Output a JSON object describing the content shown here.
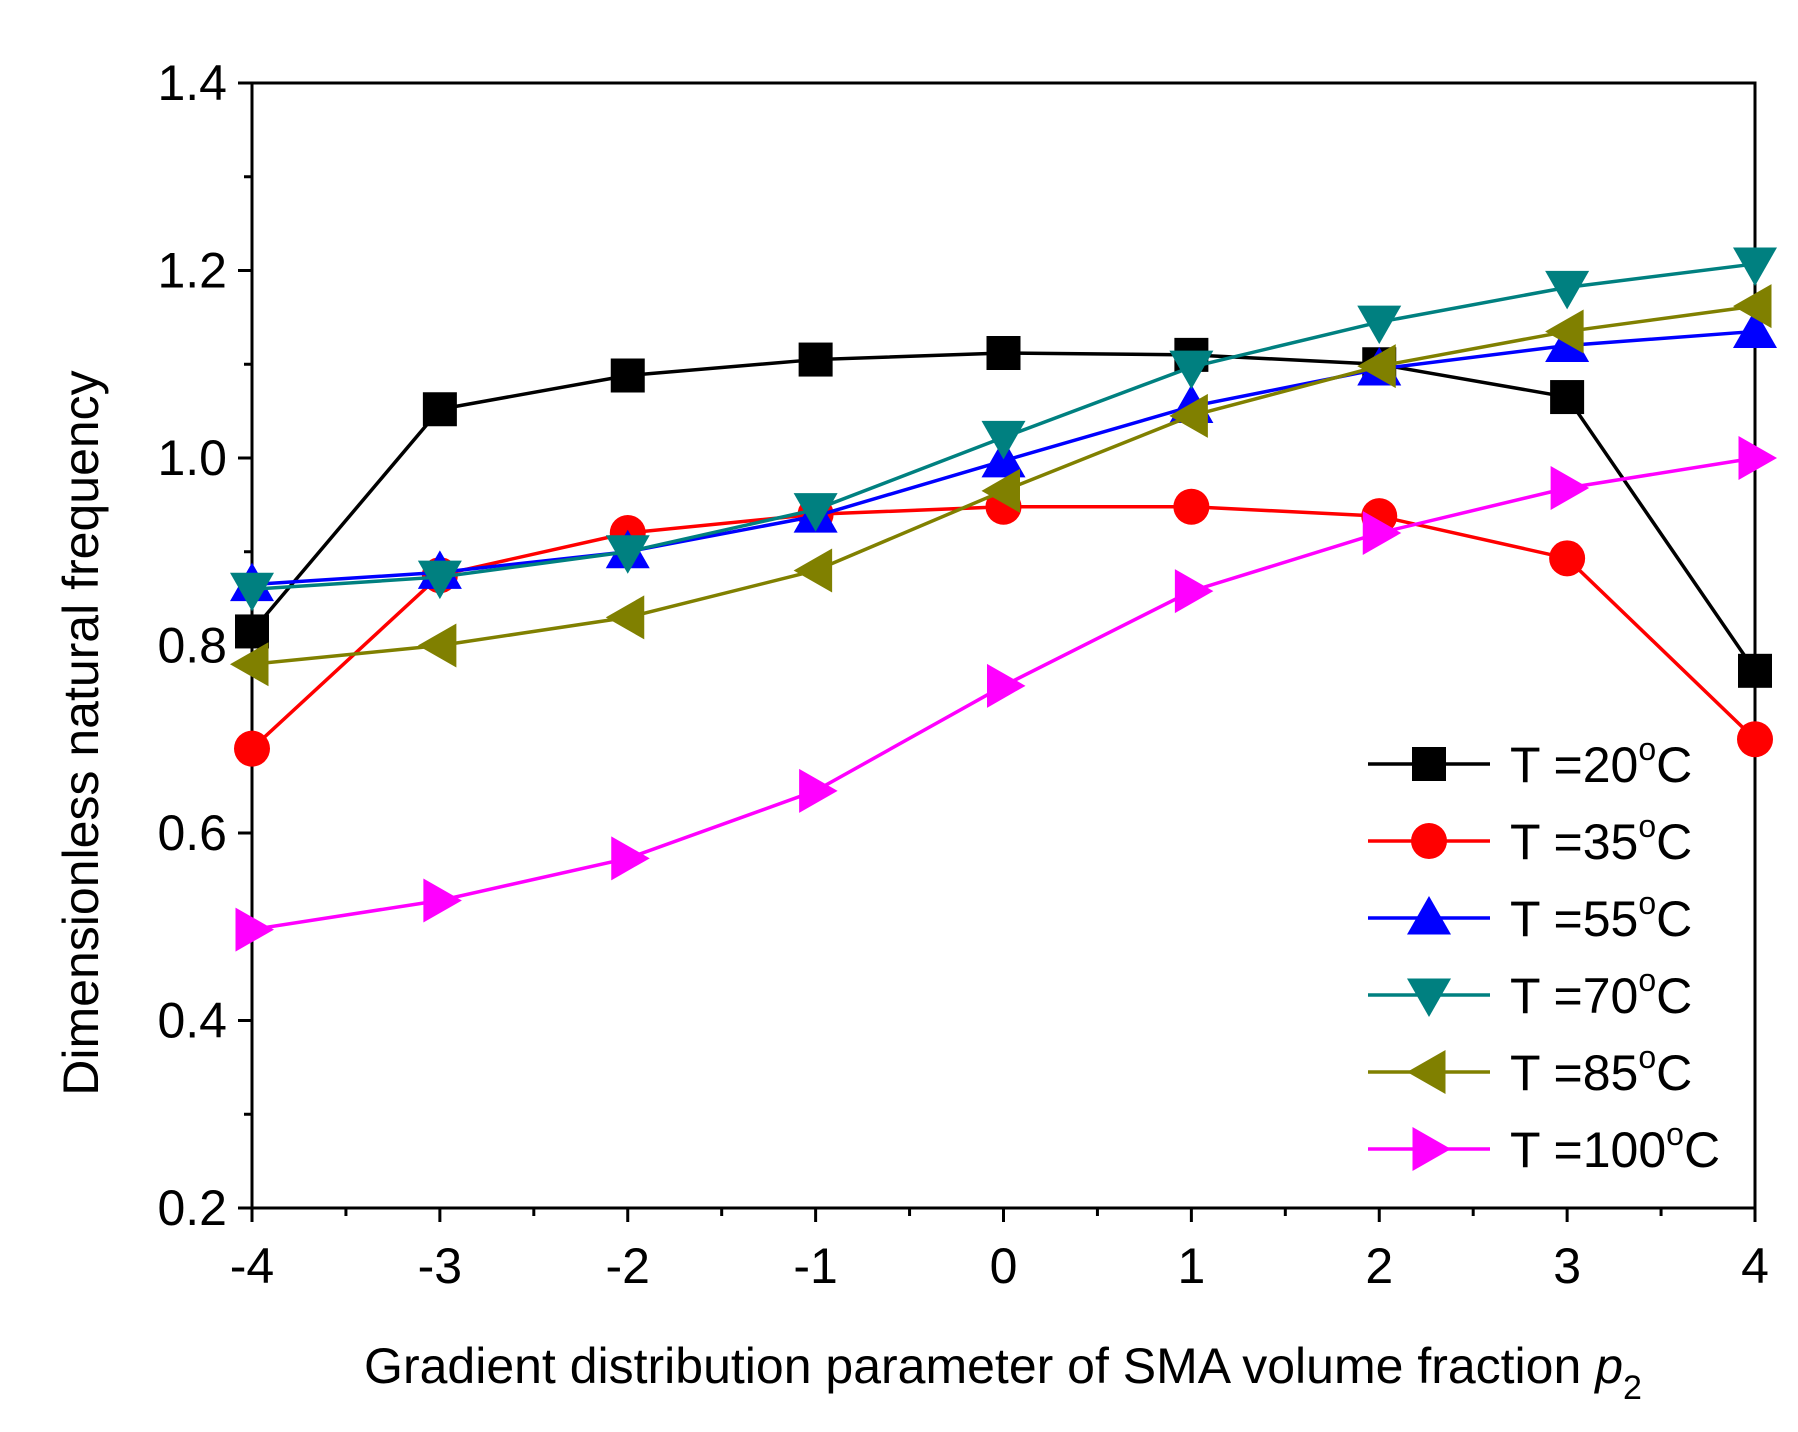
{
  "chart_data": {
    "type": "line",
    "title": "",
    "xlabel": "Gradient distribution parameter of SMA volume fraction",
    "xlabel_symbol": "p",
    "xlabel_subscript": "2",
    "ylabel": "Dimensionless natural frequency",
    "x": [
      -4,
      -3,
      -2,
      -1,
      0,
      1,
      2,
      3,
      4
    ],
    "x_tick_labels": [
      "-4",
      "-3",
      "-2",
      "-1",
      "0",
      "1",
      "2",
      "3",
      "4"
    ],
    "y_tick_labels": [
      "0.2",
      "0.4",
      "0.6",
      "0.8",
      "1.0",
      "1.2",
      "1.4"
    ],
    "y_ticks": [
      0.2,
      0.4,
      0.6,
      0.8,
      1.0,
      1.2,
      1.4
    ],
    "xlim": [
      -4,
      4
    ],
    "ylim": [
      0.2,
      1.4
    ],
    "grid": false,
    "legend_position": "bottom-right",
    "series": [
      {
        "name": "T =20",
        "unit": "C",
        "sup": "o",
        "marker": "square",
        "color": "#000000",
        "values": [
          0.815,
          1.052,
          1.088,
          1.105,
          1.112,
          1.11,
          1.1,
          1.065,
          0.773
        ]
      },
      {
        "name": "T =35",
        "unit": "C",
        "sup": "o",
        "marker": "circle",
        "color": "#ff0000",
        "values": [
          0.69,
          0.875,
          0.92,
          0.94,
          0.948,
          0.948,
          0.938,
          0.893,
          0.7
        ]
      },
      {
        "name": "T =55",
        "unit": "C",
        "sup": "o",
        "marker": "triangle-up",
        "color": "#0000ff",
        "values": [
          0.865,
          0.878,
          0.9,
          0.938,
          0.997,
          1.055,
          1.095,
          1.12,
          1.135
        ]
      },
      {
        "name": "T =70",
        "unit": "C",
        "sup": "o",
        "marker": "triangle-down",
        "color": "#008080",
        "values": [
          0.86,
          0.873,
          0.9,
          0.945,
          1.022,
          1.097,
          1.145,
          1.182,
          1.207
        ]
      },
      {
        "name": "T =85",
        "unit": "C",
        "sup": "o",
        "marker": "triangle-left",
        "color": "#808000",
        "values": [
          0.78,
          0.8,
          0.83,
          0.88,
          0.965,
          1.045,
          1.098,
          1.135,
          1.162
        ]
      },
      {
        "name": "T =100",
        "unit": "C",
        "sup": "o",
        "marker": "triangle-right",
        "color": "#ff00ff",
        "values": [
          0.497,
          0.528,
          0.573,
          0.645,
          0.757,
          0.858,
          0.92,
          0.968,
          1.0
        ]
      }
    ]
  }
}
